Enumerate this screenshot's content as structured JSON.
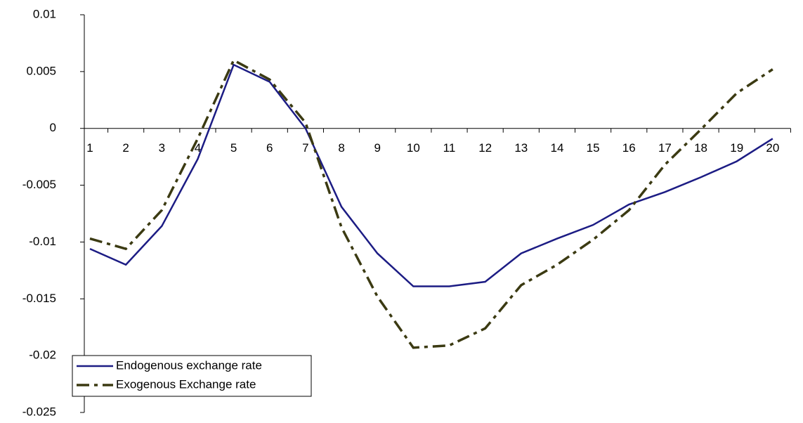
{
  "chart_data": {
    "type": "line",
    "categories": [
      "1",
      "2",
      "3",
      "4",
      "5",
      "6",
      "7",
      "8",
      "9",
      "10",
      "11",
      "12",
      "13",
      "14",
      "15",
      "16",
      "17",
      "18",
      "19",
      "20"
    ],
    "series": [
      {
        "name": "Endogenous exchange rate",
        "color": "#1c1c84",
        "dash": "none",
        "values": [
          -0.0106,
          -0.012,
          -0.0086,
          -0.0027,
          0.0056,
          0.0041,
          0,
          -0.0069,
          -0.011,
          -0.0139,
          -0.0139,
          -0.0135,
          -0.011,
          -0.0097,
          -0.0085,
          -0.0067,
          -0.0056,
          -0.0043,
          -0.0029,
          -0.0009
        ]
      },
      {
        "name": "Exogenous Exchange rate",
        "color": "#3b3a12",
        "dash": "dashdot",
        "values": [
          -0.0097,
          -0.0106,
          -0.0072,
          -0.0009,
          0.006,
          0.0043,
          0.0005,
          -0.0087,
          -0.0148,
          -0.0193,
          -0.0191,
          -0.0176,
          -0.0138,
          -0.012,
          -0.0098,
          -0.0072,
          -0.0032,
          -0.0001,
          0.0031,
          0.0052
        ]
      }
    ],
    "ylim": [
      -0.025,
      0.01
    ],
    "yticks": [
      -0.025,
      -0.02,
      -0.015,
      -0.01,
      -0.005,
      0,
      0.005,
      0.01
    ],
    "legend": "bottom-left"
  }
}
